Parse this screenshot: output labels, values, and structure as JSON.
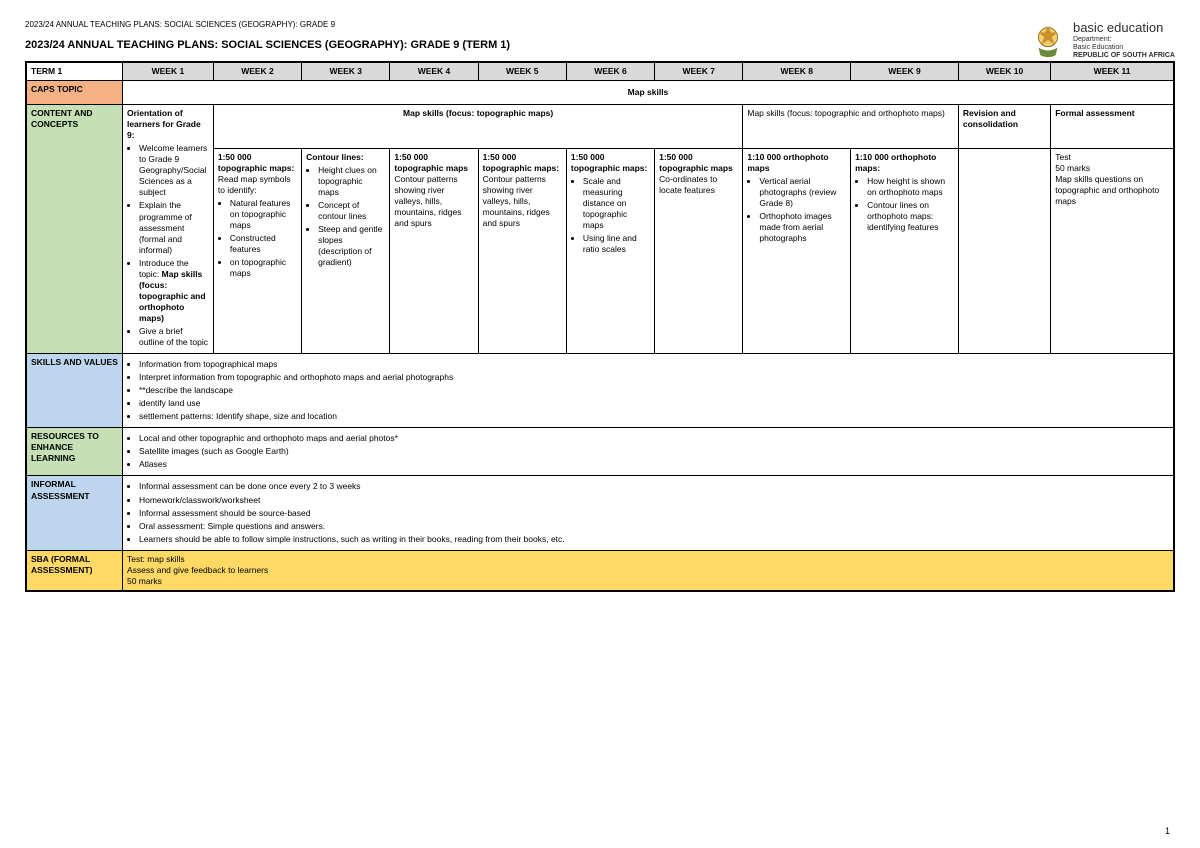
{
  "header_small": "2023/24 ANNUAL TEACHING PLANS: SOCIAL SCIENCES (GEOGRAPHY): GRADE 9",
  "header_main": "2023/24 ANNUAL TEACHING PLANS: SOCIAL SCIENCES (GEOGRAPHY): GRADE 9 (TERM 1)",
  "logo": {
    "l1": "basic education",
    "l2": "Department:",
    "l3": "Basic Education",
    "l4": "REPUBLIC OF SOUTH AFRICA"
  },
  "cols": {
    "term": "TERM 1",
    "w1": "WEEK 1",
    "w2": "WEEK 2",
    "w3": "WEEK 3",
    "w4": "WEEK 4",
    "w5": "WEEK 5",
    "w6": "WEEK 6",
    "w7": "WEEK 7",
    "w8": "WEEK 8",
    "w9": "WEEK 9",
    "w10": "WEEK 10",
    "w11": "WEEK 11"
  },
  "rows": {
    "caps": {
      "label": "CAPS TOPIC",
      "span": "Map skills"
    },
    "content": {
      "label": "CONTENT AND CONCEPTS",
      "w1_head": "Orientation of learners for Grade 9:",
      "w1_items": [
        "Welcome learners to Grade 9 Geography/Social Sciences as a subject",
        "Explain the programme of assessment (formal and informal)",
        "Introduce the topic: <b>Map skills (focus: topographic and orthophoto maps)</b>",
        "Give a brief outline of the topic"
      ],
      "span27": "Map skills (focus: topographic maps)",
      "span89": "Map skills (focus: topographic and orthophoto maps)",
      "w10": "Revision and consolidation",
      "w11": "Formal assessment",
      "w2_head": "1:50 000 topographic maps:",
      "w2_lead": "Read map symbols to identify:",
      "w2_items": [
        "Natural features on topographic maps",
        "Constructed features",
        "on topographic maps"
      ],
      "w3_head": "Contour lines:",
      "w3_items": [
        "Height clues on topographic maps",
        "Concept of contour lines",
        "Steep and gentle slopes (description of gradient)"
      ],
      "w4_head": "1:50 000 topographic maps",
      "w4_body": "Contour patterns showing river valleys, hills, mountains, ridges and spurs",
      "w5_head": "1:50 000 topographic maps:",
      "w5_body": "Contour patterns showing river valleys, hills, mountains, ridges and spurs",
      "w6_head": "1:50 000 topographic maps:",
      "w6_items": [
        "Scale and measuring distance on topographic maps",
        "Using line and ratio scales"
      ],
      "w7_head": "1:50 000 topographic maps",
      "w7_body": "Co-ordinates to locate features",
      "w8_head": "1:10 000 orthophoto maps",
      "w8_items": [
        "Vertical aerial photographs (review Grade 8)",
        "Orthophoto images made from aerial photographs"
      ],
      "w9_head": "1:10 000 orthophoto maps:",
      "w9_items": [
        "How height is shown on orthophoto maps",
        "Contour lines on orthophoto maps: identifying features"
      ],
      "w11b_l1": "Test",
      "w11b_l2": "50 marks",
      "w11b_l3": "Map skills questions on topographic and orthophoto maps"
    },
    "skills": {
      "label": "SKILLS AND VALUES",
      "items": [
        "Information from topographical maps",
        "Interpret information from topographic and orthophoto maps and aerial photographs",
        "**describe the landscape",
        "identify land use",
        "settlement patterns: Identify shape, size and location"
      ]
    },
    "resources": {
      "label": "RESOURCES TO ENHANCE LEARNING",
      "items": [
        "Local and other topographic and orthophoto maps and aerial photos*",
        "Satellite images (such as Google Earth)",
        "Atlases"
      ]
    },
    "informal": {
      "label": "INFORMAL ASSESSMENT",
      "items": [
        "Informal assessment can be done once every 2 to 3 weeks",
        "Homework/classwork/worksheet",
        "Informal assessment should be source-based",
        "Oral assessment: Simple questions and answers.",
        "Learners should be able to follow simple instructions, such as writing in their books, reading from their books, etc."
      ]
    },
    "sba": {
      "label": "SBA (FORMAL ASSESSMENT)",
      "l1": "Test: map skills",
      "l2": "Assess and give feedback to learners",
      "l3": "50 marks"
    }
  },
  "page": "1"
}
